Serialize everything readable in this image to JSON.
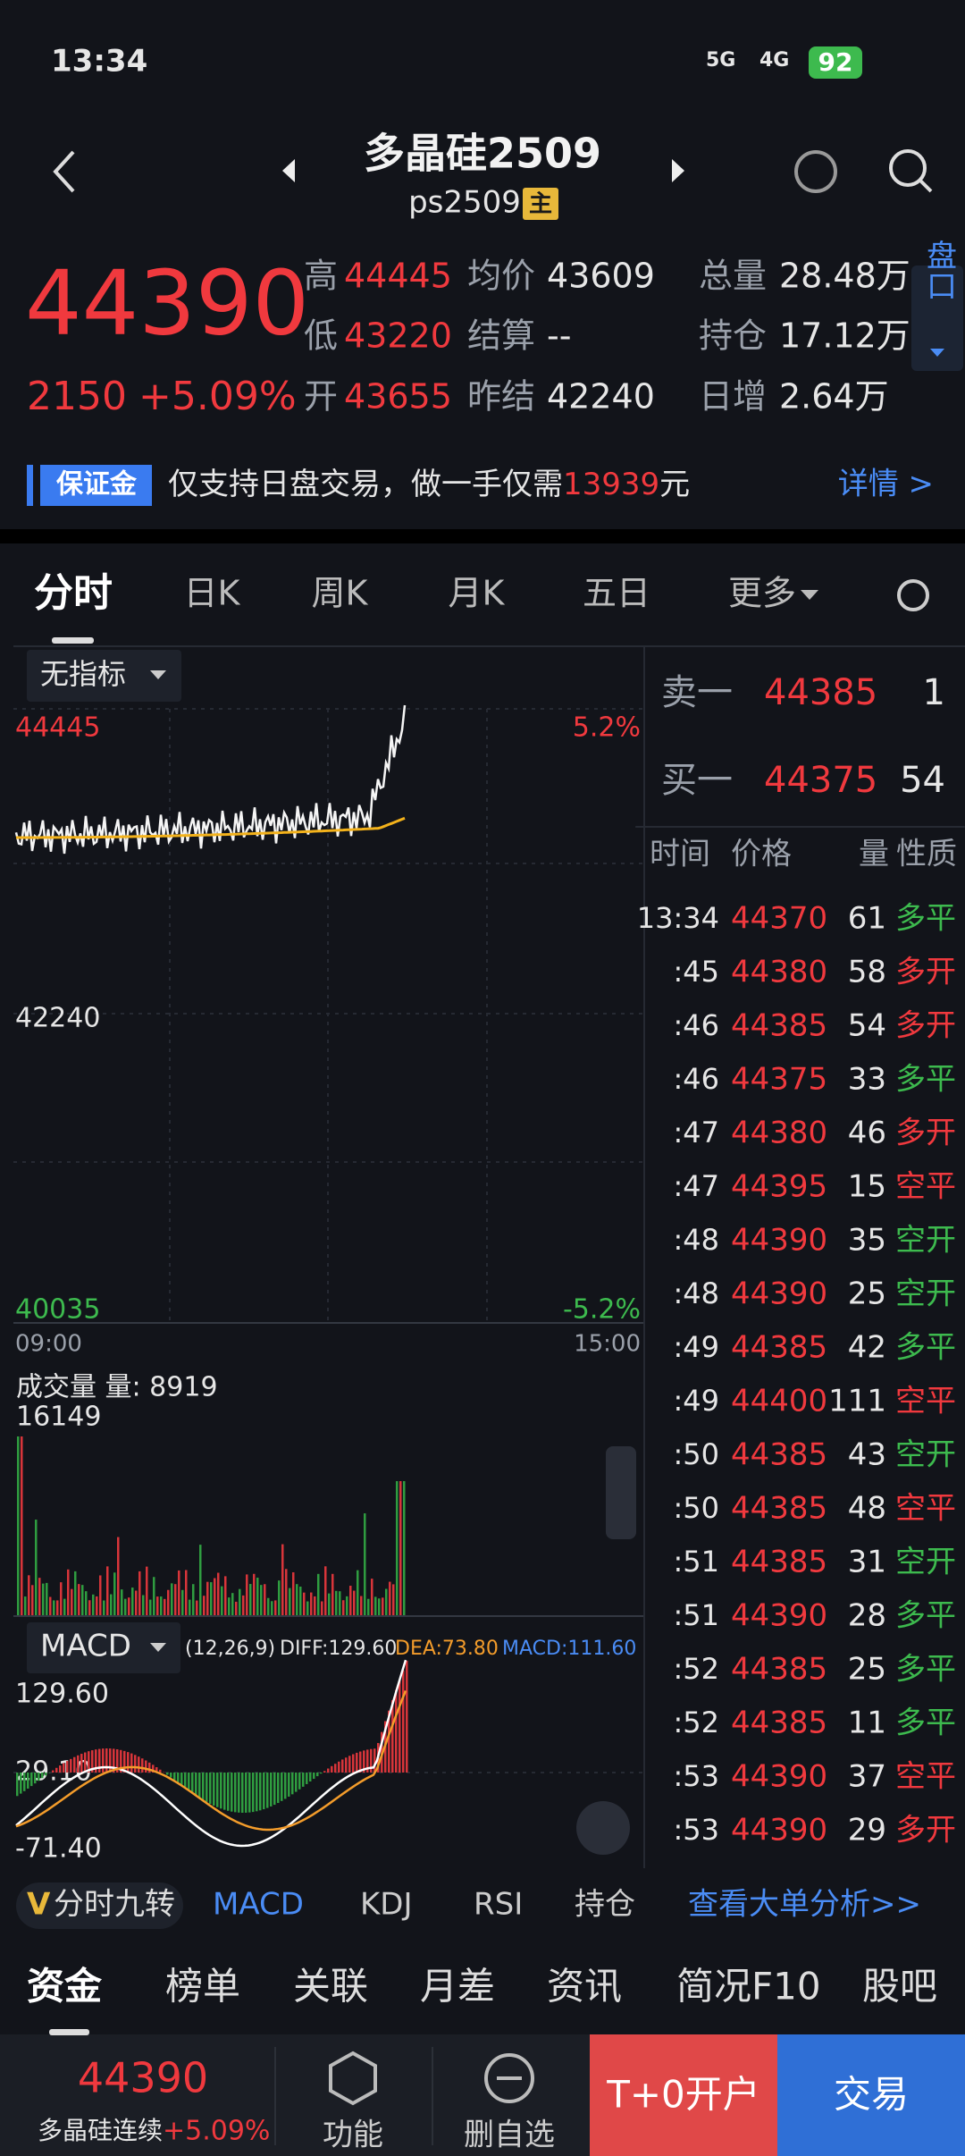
{
  "status": {
    "time": "13:34",
    "net1": "5G",
    "net2": "4G",
    "battery": "92"
  },
  "header": {
    "title": "多晶硅2509",
    "code": "ps2509",
    "badge": "主"
  },
  "quote": {
    "price": "44390",
    "change": "2150",
    "pct": "+5.09%",
    "stats": [
      {
        "label": "高",
        "value": "44445"
      },
      {
        "label": "低",
        "value": "43220"
      },
      {
        "label": "开",
        "value": "43655"
      },
      {
        "label": "均价",
        "value": "43609"
      },
      {
        "label": "结算",
        "value": "--"
      },
      {
        "label": "昨结",
        "value": "42240"
      },
      {
        "label": "总量",
        "value": "28.48万"
      },
      {
        "label": "持仓",
        "value": "17.12万"
      },
      {
        "label": "日增",
        "value": "2.64万"
      }
    ],
    "side_button": "盘口"
  },
  "banner": {
    "tag": "保证金",
    "text": "仅支持日盘交易，做一手仅需",
    "amount": "13939",
    "unit": "元",
    "link": "详情 >"
  },
  "tabs": [
    "分时",
    "日K",
    "周K",
    "月K",
    "五日",
    "更多"
  ],
  "chart": {
    "indicator": "无指标",
    "high": "44445",
    "high_pct": "5.2%",
    "mid": "42240",
    "low": "40035",
    "low_pct": "-5.2%",
    "start": "09:00",
    "end": "15:00",
    "volume_label": "成交量 量: 8919",
    "volume_max": "16149",
    "macd": {
      "name": "MACD",
      "params": "(12,26,9)",
      "diff": "DIFF:129.60",
      "dea": "DEA:73.80",
      "macd": "MACD:111.60",
      "top": "129.60",
      "mid": "29.10",
      "bottom": "-71.40"
    }
  },
  "orderbook": {
    "ask": {
      "label": "卖一",
      "price": "44385",
      "qty": "1"
    },
    "bid": {
      "label": "买一",
      "price": "44375",
      "qty": "54"
    },
    "headers": [
      "时间",
      "价格",
      "量",
      "性质"
    ],
    "rows": [
      {
        "time": "13:34",
        "price": "44370",
        "qty": "61",
        "nature": "多平",
        "color": "#3dba4e"
      },
      {
        "time": ":45",
        "price": "44380",
        "qty": "58",
        "nature": "多开",
        "color": "#f0393e"
      },
      {
        "time": ":46",
        "price": "44385",
        "qty": "54",
        "nature": "多开",
        "color": "#f0393e"
      },
      {
        "time": ":46",
        "price": "44375",
        "qty": "33",
        "nature": "多平",
        "color": "#3dba4e"
      },
      {
        "time": ":47",
        "price": "44380",
        "qty": "46",
        "nature": "多开",
        "color": "#f0393e"
      },
      {
        "time": ":47",
        "price": "44395",
        "qty": "15",
        "nature": "空平",
        "color": "#f0393e"
      },
      {
        "time": ":48",
        "price": "44390",
        "qty": "35",
        "nature": "空开",
        "color": "#3dba4e"
      },
      {
        "time": ":48",
        "price": "44390",
        "qty": "25",
        "nature": "空开",
        "color": "#3dba4e"
      },
      {
        "time": ":49",
        "price": "44385",
        "qty": "42",
        "nature": "多平",
        "color": "#3dba4e"
      },
      {
        "time": ":49",
        "price": "44400",
        "qty": "111",
        "nature": "空平",
        "color": "#f0393e"
      },
      {
        "time": ":50",
        "price": "44385",
        "qty": "43",
        "nature": "空开",
        "color": "#3dba4e"
      },
      {
        "time": ":50",
        "price": "44385",
        "qty": "48",
        "nature": "空平",
        "color": "#f0393e"
      },
      {
        "time": ":51",
        "price": "44385",
        "qty": "31",
        "nature": "空开",
        "color": "#3dba4e"
      },
      {
        "time": ":51",
        "price": "44390",
        "qty": "28",
        "nature": "多平",
        "color": "#3dba4e"
      },
      {
        "time": ":52",
        "price": "44385",
        "qty": "25",
        "nature": "多平",
        "color": "#3dba4e"
      },
      {
        "time": ":52",
        "price": "44385",
        "qty": "11",
        "nature": "多平",
        "color": "#3dba4e"
      },
      {
        "time": ":53",
        "price": "44390",
        "qty": "37",
        "nature": "空平",
        "color": "#f0393e"
      },
      {
        "time": ":53",
        "price": "44390",
        "qty": "29",
        "nature": "多开",
        "color": "#f0393e"
      }
    ]
  },
  "indicator_tabs": [
    "分时九转",
    "MACD",
    "KDJ",
    "RSI",
    "持仓",
    "查看大单分析>>"
  ],
  "bottom_tabs": [
    "资金",
    "榜单",
    "关联",
    "月差",
    "资讯",
    "简况F10",
    "股吧"
  ],
  "bottom_bar": {
    "price": "44390",
    "name": "多晶硅连续",
    "pct": "+5.09%",
    "func": "功能",
    "remove": "删自选",
    "open": "T+0开户",
    "trade": "交易"
  }
}
